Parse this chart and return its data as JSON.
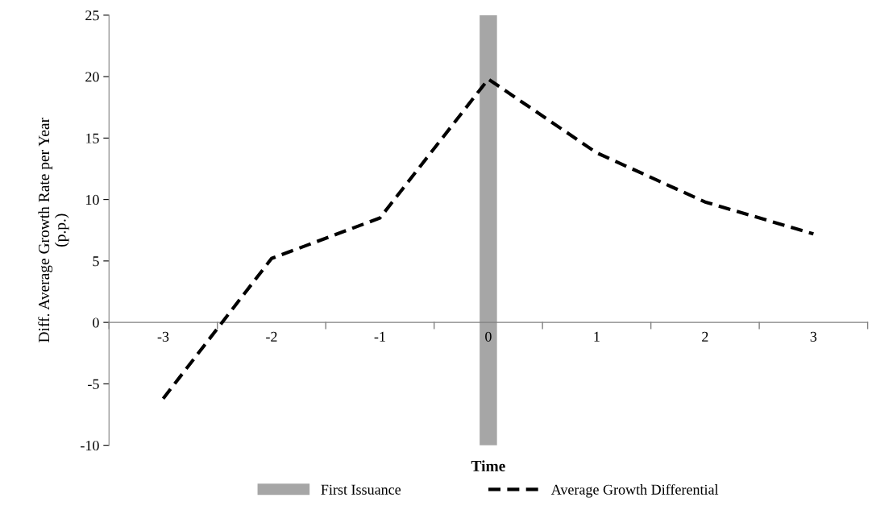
{
  "chart_data": {
    "type": "line",
    "xlabel": "Time",
    "ylabel": "Diff. Average Growth Rate per Year\n(p.p.)",
    "categories": [
      "-3",
      "-2",
      "-1",
      "0",
      "1",
      "2",
      "3"
    ],
    "series": [
      {
        "name": "First Issuance",
        "type": "bar",
        "color": "#a6a6a6",
        "values": [
          null,
          null,
          null,
          35,
          null,
          null,
          null
        ],
        "base": [
          null,
          null,
          null,
          -10,
          null,
          null,
          null
        ]
      },
      {
        "name": "Average Growth Differential",
        "color": "#000000",
        "line_style": "dashed",
        "values": [
          -6.2,
          5.2,
          8.5,
          19.8,
          13.8,
          9.8,
          7.2
        ]
      }
    ],
    "ylim": [
      -10,
      25
    ],
    "yticks": [
      -10,
      -5,
      0,
      5,
      10,
      15,
      20,
      25
    ],
    "grid": false,
    "legend": "bottom",
    "marker": "none"
  }
}
